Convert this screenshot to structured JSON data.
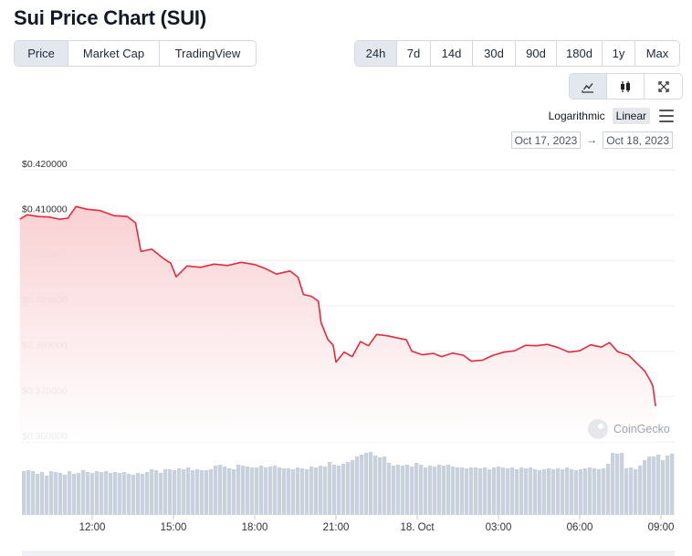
{
  "title": "Sui Price Chart (SUI)",
  "view_tabs": [
    {
      "label": "Price",
      "active": true
    },
    {
      "label": "Market Cap",
      "active": false
    },
    {
      "label": "TradingView",
      "active": false
    }
  ],
  "range_tabs": [
    {
      "label": "24h",
      "active": true
    },
    {
      "label": "7d",
      "active": false
    },
    {
      "label": "14d",
      "active": false
    },
    {
      "label": "30d",
      "active": false
    },
    {
      "label": "90d",
      "active": false
    },
    {
      "label": "180d",
      "active": false
    },
    {
      "label": "1y",
      "active": false
    },
    {
      "label": "Max",
      "active": false
    }
  ],
  "chart_type_buttons": [
    {
      "icon": "line-chart-icon",
      "active": true
    },
    {
      "icon": "candlestick-icon",
      "active": false
    },
    {
      "icon": "fullscreen-icon",
      "active": false
    }
  ],
  "scale": {
    "logarithmic_label": "Logarithmic",
    "linear_label": "Linear",
    "active": "linear",
    "menu_icon": "hamburger-menu-icon"
  },
  "date_range": {
    "from": "Oct 17, 2023",
    "arrow": "→",
    "to": "Oct 18, 2023"
  },
  "watermark": "CoinGecko",
  "colors": {
    "line": "#e8293c",
    "area_top": "#f9d0d3",
    "volume": "#c9d1dc",
    "active_button": "#e3e8ef"
  },
  "chart_data": {
    "type": "area",
    "y_ticks": [
      "$0.420000",
      "$0.410000",
      "$0.400000",
      "$0.390000",
      "$0.380000",
      "$0.370000",
      "$0.360000"
    ],
    "ylim": [
      0.36,
      0.42
    ],
    "x_ticks": [
      "12:00",
      "15:00",
      "18:00",
      "21:00",
      "18. Oct",
      "03:00",
      "06:00",
      "09:00"
    ],
    "series": [
      {
        "values": [
          [
            9.33,
            0.4091
          ],
          [
            9.6,
            0.4101
          ],
          [
            10.0,
            0.4097
          ],
          [
            10.4,
            0.4096
          ],
          [
            10.8,
            0.4091
          ],
          [
            11.1,
            0.4093
          ],
          [
            11.4,
            0.4119
          ],
          [
            11.8,
            0.4113
          ],
          [
            12.3,
            0.411
          ],
          [
            12.8,
            0.4099
          ],
          [
            13.3,
            0.4097
          ],
          [
            13.6,
            0.4083
          ],
          [
            13.8,
            0.402
          ],
          [
            14.2,
            0.4025
          ],
          [
            14.6,
            0.4006
          ],
          [
            14.9,
            0.3994
          ],
          [
            15.1,
            0.3964
          ],
          [
            15.5,
            0.3988
          ],
          [
            16.0,
            0.3985
          ],
          [
            16.5,
            0.3992
          ],
          [
            17.0,
            0.3989
          ],
          [
            17.5,
            0.3996
          ],
          [
            18.0,
            0.3991
          ],
          [
            18.4,
            0.3982
          ],
          [
            18.8,
            0.397
          ],
          [
            19.3,
            0.3977
          ],
          [
            19.6,
            0.3963
          ],
          [
            19.8,
            0.3925
          ],
          [
            20.1,
            0.3921
          ],
          [
            20.35,
            0.391
          ],
          [
            20.45,
            0.3863
          ],
          [
            20.7,
            0.3826
          ],
          [
            20.9,
            0.3813
          ],
          [
            21.0,
            0.3776
          ],
          [
            21.3,
            0.3798
          ],
          [
            21.6,
            0.3788
          ],
          [
            21.9,
            0.3821
          ],
          [
            22.2,
            0.3812
          ],
          [
            22.5,
            0.3837
          ],
          [
            22.9,
            0.3834
          ],
          [
            23.3,
            0.3829
          ],
          [
            23.6,
            0.3825
          ],
          [
            23.8,
            0.38
          ],
          [
            24.2,
            0.3792
          ],
          [
            24.6,
            0.3795
          ],
          [
            24.9,
            0.3788
          ],
          [
            25.3,
            0.3796
          ],
          [
            25.7,
            0.3791
          ],
          [
            26.0,
            0.3778
          ],
          [
            26.4,
            0.378
          ],
          [
            26.8,
            0.3791
          ],
          [
            27.2,
            0.3798
          ],
          [
            27.6,
            0.3801
          ],
          [
            28.0,
            0.3813
          ],
          [
            28.4,
            0.3812
          ],
          [
            28.8,
            0.3815
          ],
          [
            29.2,
            0.3808
          ],
          [
            29.6,
            0.3798
          ],
          [
            30.0,
            0.3801
          ],
          [
            30.4,
            0.3814
          ],
          [
            30.8,
            0.3809
          ],
          [
            31.1,
            0.3819
          ],
          [
            31.4,
            0.3799
          ],
          [
            31.8,
            0.3791
          ],
          [
            32.2,
            0.3768
          ],
          [
            32.4,
            0.3756
          ],
          [
            32.6,
            0.3736
          ],
          [
            32.7,
            0.3723
          ],
          [
            32.8,
            0.3679
          ]
        ]
      }
    ],
    "volume": [
      48,
      49,
      48,
      45,
      47,
      43,
      48,
      47,
      46,
      44,
      48,
      45,
      46,
      49,
      47,
      46,
      48,
      47,
      48,
      46,
      47,
      46,
      47,
      45,
      44,
      46,
      45,
      47,
      50,
      49,
      46,
      50,
      50,
      49,
      51,
      50,
      52,
      49,
      50,
      49,
      49,
      50,
      54,
      55,
      53,
      51,
      50,
      55,
      54,
      53,
      52,
      52,
      54,
      52,
      53,
      54,
      52,
      51,
      51,
      50,
      52,
      51,
      50,
      53,
      52,
      54,
      53,
      58,
      55,
      54,
      56,
      58,
      60,
      64,
      66,
      68,
      69,
      65,
      63,
      64,
      57,
      54,
      55,
      54,
      55,
      53,
      57,
      55,
      52,
      54,
      53,
      55,
      54,
      55,
      53,
      52,
      52,
      51,
      52,
      52,
      51,
      52,
      50,
      52,
      53,
      52,
      51,
      52,
      50,
      52,
      51,
      52,
      50,
      49,
      50,
      51,
      50,
      51,
      50,
      52,
      50,
      49,
      50,
      51,
      52,
      51,
      50,
      51,
      56,
      68,
      67,
      68,
      51,
      52,
      50,
      54,
      60,
      64,
      64,
      66,
      60,
      65,
      67
    ],
    "grid": true,
    "legend": "none"
  }
}
